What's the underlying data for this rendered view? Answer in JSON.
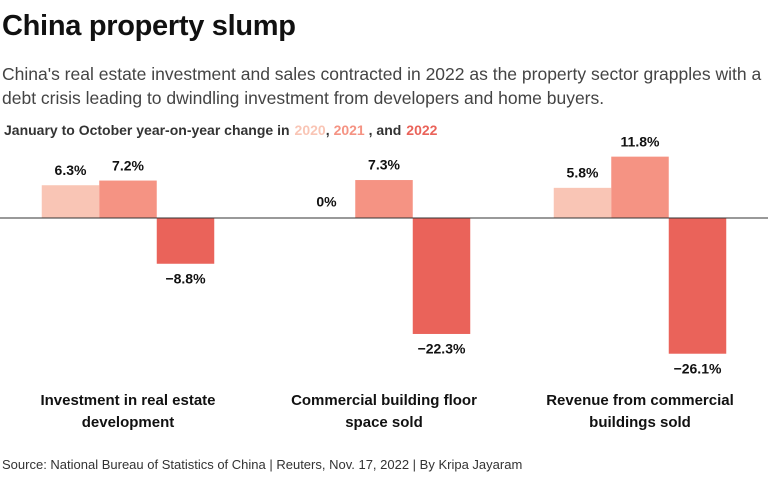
{
  "chart_data": {
    "type": "bar",
    "title": "China property slump",
    "subtitle": "China's real estate investment and sales contracted in 2022 as the property sector grapples with a debt crisis leading to dwindling investment from developers and home buyers.",
    "legend_text": "January to October year-on-year change in",
    "legend_joiners": [
      ",",
      " , and"
    ],
    "categories": [
      "Investment in real estate development",
      "Commercial building floor space sold",
      "Revenue from commercial buildings sold"
    ],
    "series": [
      {
        "name": "2020",
        "color": "#f9c5b5",
        "values": [
          6.3,
          0,
          5.8
        ],
        "value_labels": [
          "6.3%",
          "0%",
          "5.8%"
        ]
      },
      {
        "name": "2021",
        "color": "#f59383",
        "values": [
          7.2,
          7.3,
          11.8
        ],
        "value_labels": [
          "7.2%",
          "7.3%",
          "11.8%"
        ]
      },
      {
        "name": "2022",
        "color": "#ea635a",
        "values": [
          -8.8,
          -22.3,
          -26.1
        ],
        "value_labels": [
          "−8.8%",
          "−22.3%",
          "−26.1%"
        ]
      }
    ],
    "ylim": [
      -27,
      13
    ],
    "source": "Source: National Bureau of Statistics of China | Reuters, Nov. 17, 2022 | By Kripa Jayaram"
  }
}
